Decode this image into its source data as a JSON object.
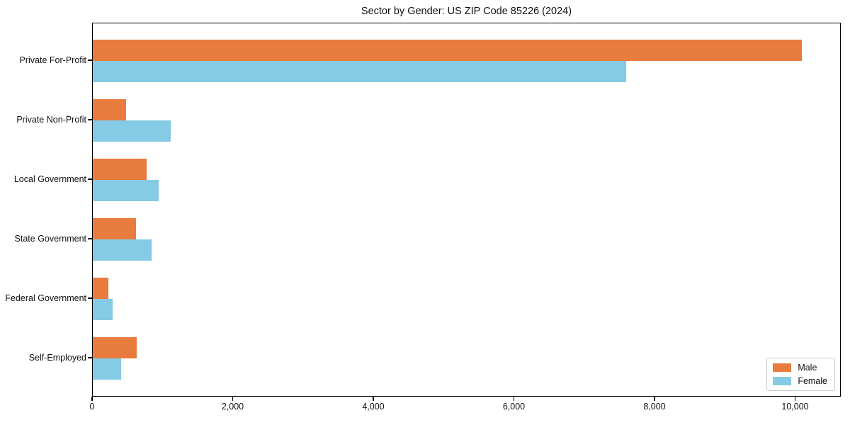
{
  "figure": {
    "background_color": "#ffffff",
    "text_color": "#111111"
  },
  "chart_data": {
    "type": "bar",
    "orientation": "horizontal",
    "title": "Sector by Gender: US ZIP Code 85226 (2024)",
    "xlabel": "",
    "ylabel": "",
    "categories": [
      "Private For-Profit",
      "Private Non-Profit",
      "Local Government",
      "State Government",
      "Federal Government",
      "Self-Employed"
    ],
    "series": [
      {
        "name": "Male",
        "color": "#e87c3e",
        "values": [
          10100,
          470,
          770,
          620,
          220,
          630
        ]
      },
      {
        "name": "Female",
        "color": "#85cbe5",
        "values": [
          7600,
          1110,
          940,
          840,
          280,
          400
        ]
      }
    ],
    "xlim": [
      0,
      10650
    ],
    "x_ticks": [
      0,
      2000,
      4000,
      6000,
      8000,
      10000
    ],
    "x_tick_labels": [
      "0",
      "2,000",
      "4,000",
      "6,000",
      "8,000",
      "10,000"
    ],
    "grid": false,
    "legend": {
      "position": "lower right"
    }
  }
}
